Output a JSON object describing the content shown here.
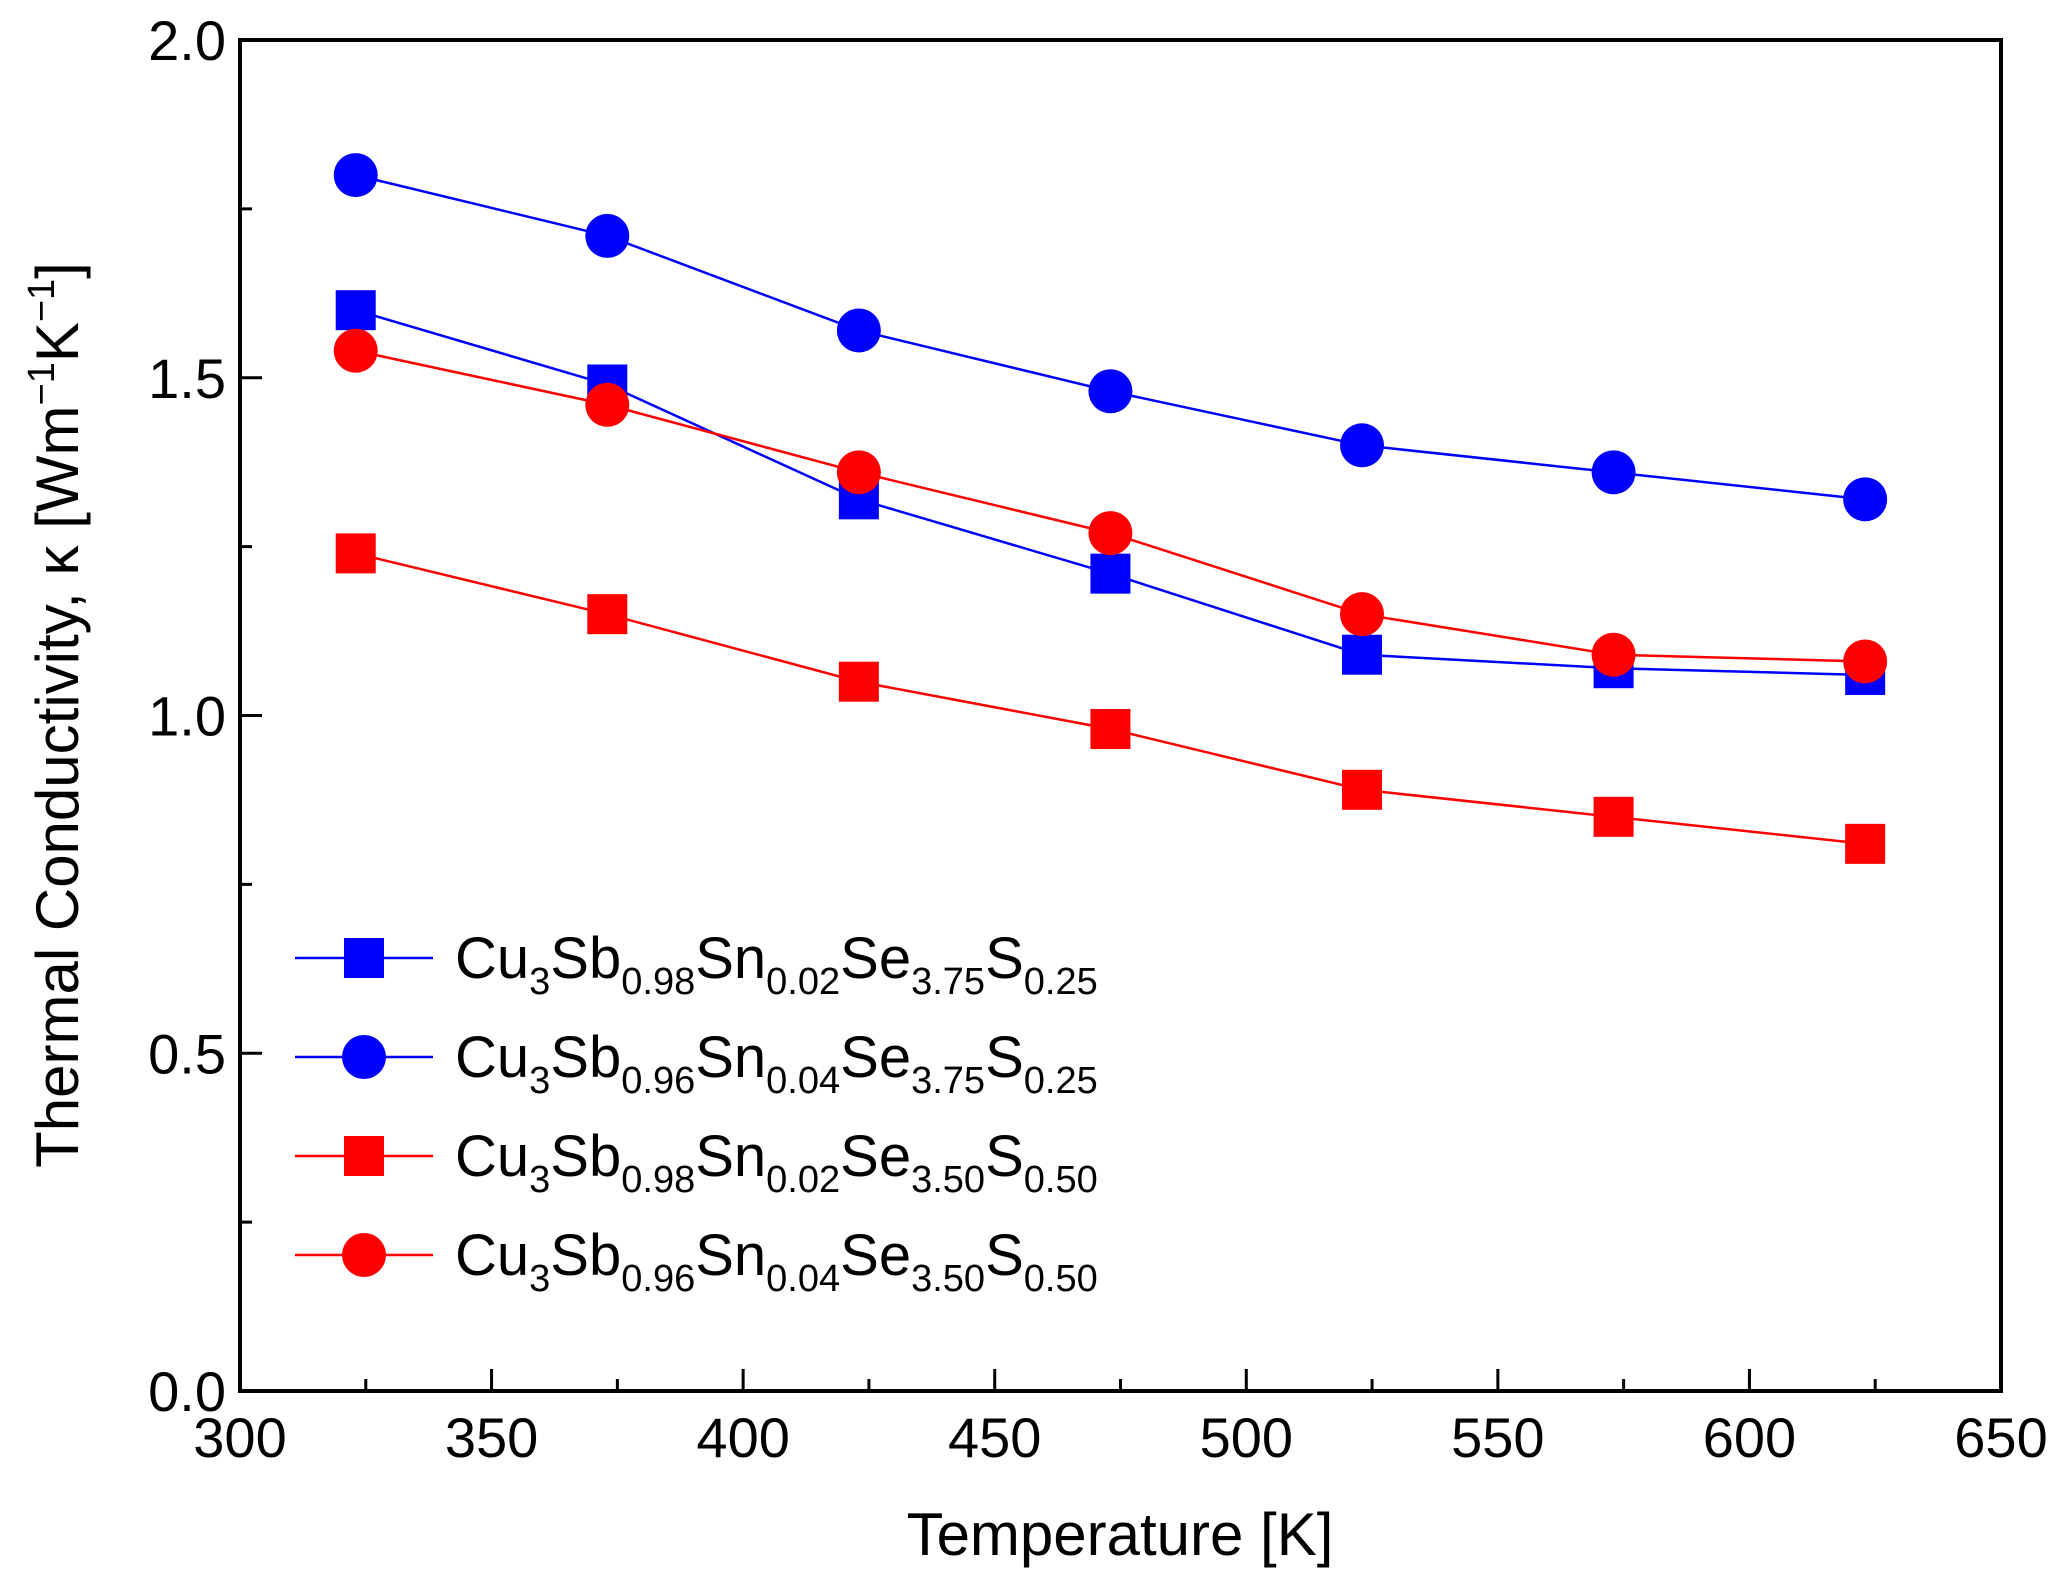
{
  "chart_data": {
    "type": "line",
    "title": "",
    "xlabel": "Temperature [K]",
    "ylabel": "Thermal Conductivity, κ [Wm⁻¹K⁻¹]",
    "ylabel_parts": {
      "main": "Thermal Conductivity, κ [Wm",
      "exp1": "−1",
      "mid": "K",
      "exp2": "−1",
      "end": "]"
    },
    "xlim": [
      300,
      650
    ],
    "ylim": [
      0.0,
      2.0
    ],
    "xticks": [
      "300",
      "350",
      "400",
      "450",
      "500",
      "550",
      "600",
      "650"
    ],
    "yticks": [
      "0.0",
      "0.5",
      "1.0",
      "1.5",
      "2.0"
    ],
    "x": [
      323,
      373,
      423,
      473,
      523,
      573,
      623
    ],
    "legend_position": "lower-left",
    "series": [
      {
        "name": "Cu3Sb0.98Sn0.02Se3.75S0.25",
        "marker": "square",
        "color": "#0000ff",
        "label_parts": [
          [
            "Cu",
            "3"
          ],
          [
            "Sb",
            "0.98"
          ],
          [
            "Sn",
            "0.02"
          ],
          [
            "Se",
            "3.75"
          ],
          [
            "S",
            "0.25"
          ]
        ],
        "values": [
          1.6,
          1.49,
          1.32,
          1.21,
          1.09,
          1.07,
          1.06
        ]
      },
      {
        "name": "Cu3Sb0.96Sn0.04Se3.75S0.25",
        "marker": "circle",
        "color": "#0000ff",
        "label_parts": [
          [
            "Cu",
            "3"
          ],
          [
            "Sb",
            "0.96"
          ],
          [
            "Sn",
            "0.04"
          ],
          [
            "Se",
            "3.75"
          ],
          [
            "S",
            "0.25"
          ]
        ],
        "values": [
          1.8,
          1.71,
          1.57,
          1.48,
          1.4,
          1.36,
          1.32
        ]
      },
      {
        "name": "Cu3Sb0.98Sn0.02Se3.50S0.50",
        "marker": "square",
        "color": "#ff0000",
        "label_parts": [
          [
            "Cu",
            "3"
          ],
          [
            "Sb",
            "0.98"
          ],
          [
            "Sn",
            "0.02"
          ],
          [
            "Se",
            "3.50"
          ],
          [
            "S",
            "0.50"
          ]
        ],
        "values": [
          1.24,
          1.15,
          1.05,
          0.98,
          0.89,
          0.85,
          0.81
        ]
      },
      {
        "name": "Cu3Sb0.96Sn0.04Se3.50S0.50",
        "marker": "circle",
        "color": "#ff0000",
        "label_parts": [
          [
            "Cu",
            "3"
          ],
          [
            "Sb",
            "0.96"
          ],
          [
            "Sn",
            "0.04"
          ],
          [
            "Se",
            "3.50"
          ],
          [
            "S",
            "0.50"
          ]
        ],
        "values": [
          1.54,
          1.46,
          1.36,
          1.27,
          1.15,
          1.09,
          1.08
        ]
      }
    ]
  }
}
